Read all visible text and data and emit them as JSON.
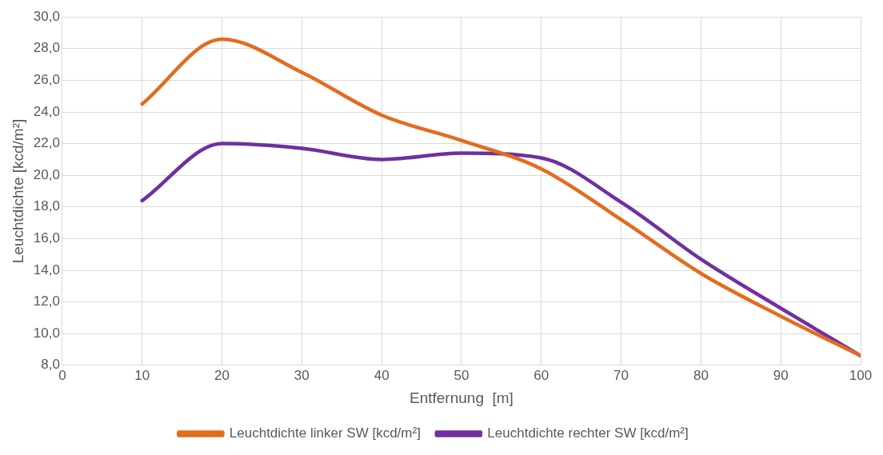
{
  "chart_data": {
    "type": "line",
    "xlabel": "Entfernung  [m]",
    "ylabel": "Leuchtdichte [kcd/m²]",
    "x": [
      10,
      20,
      30,
      40,
      50,
      60,
      70,
      80,
      90,
      100
    ],
    "series": [
      {
        "name": "Leuchtdichte linker SW [kcd/m²]",
        "color": "#e36c1e",
        "values": [
          24.5,
          28.6,
          26.5,
          23.8,
          22.2,
          20.4,
          17.2,
          13.8,
          11.1,
          8.6
        ]
      },
      {
        "name": "Leuchtdichte rechter SW [kcd/m²]",
        "color": "#7030a0",
        "values": [
          18.4,
          22.0,
          21.7,
          21.0,
          21.4,
          21.1,
          18.3,
          14.7,
          11.6,
          8.6
        ]
      }
    ],
    "xlim": [
      0,
      100
    ],
    "xticks": [
      0,
      10,
      20,
      30,
      40,
      50,
      60,
      70,
      80,
      90,
      100
    ],
    "ylim": [
      8,
      30
    ],
    "yticks": [
      {
        "value": 8,
        "label": "8,0"
      },
      {
        "value": 10,
        "label": "10,0"
      },
      {
        "value": 12,
        "label": "12,0"
      },
      {
        "value": 14,
        "label": "14,0"
      },
      {
        "value": 16,
        "label": "16,0"
      },
      {
        "value": 18,
        "label": "18,0"
      },
      {
        "value": 20,
        "label": "20,0"
      },
      {
        "value": 22,
        "label": "22,0"
      },
      {
        "value": 24,
        "label": "24,0"
      },
      {
        "value": 26,
        "label": "26,0"
      },
      {
        "value": 28,
        "label": "28,0"
      },
      {
        "value": 30,
        "label": "30,0"
      }
    ],
    "grid": true,
    "legend": "bottom",
    "marker": "none",
    "line_style": "solid"
  }
}
